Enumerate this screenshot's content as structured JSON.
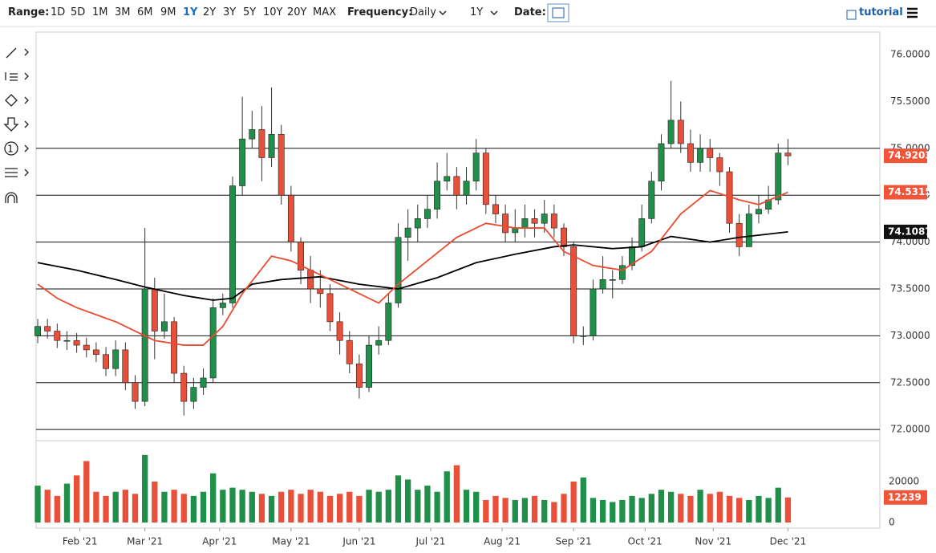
{
  "toolbar": {
    "range_label": "Range:",
    "ranges": [
      "1D",
      "5D",
      "1M",
      "3M",
      "6M",
      "9M",
      "1Y",
      "2Y",
      "3Y",
      "5Y",
      "10Y",
      "20Y",
      "MAX"
    ],
    "frequency_label": "Frequency:",
    "frequency": "Daily",
    "period": "1Y",
    "date_label": "Date:",
    "tutorial": "tutorial"
  },
  "chart_data": {
    "type": "candlestick",
    "x": [
      0,
      3,
      6,
      9,
      12,
      15,
      18,
      21,
      24,
      27,
      30,
      33,
      36,
      39,
      42,
      45,
      48,
      51,
      54,
      57,
      60,
      63,
      66,
      69,
      72,
      75,
      78,
      81,
      84,
      87,
      90,
      93,
      96,
      99,
      102,
      105,
      108,
      111,
      114,
      117,
      120,
      123,
      126,
      129,
      132,
      135,
      138,
      141,
      144,
      147,
      150,
      153,
      156,
      159,
      162,
      165,
      168,
      171,
      174,
      177,
      180,
      183,
      186,
      189,
      192,
      195,
      198,
      201,
      204,
      207,
      210,
      213,
      216,
      219,
      222,
      225,
      228,
      231
    ],
    "open": [
      73.0,
      73.1,
      73.05,
      72.95,
      72.95,
      72.9,
      72.85,
      72.8,
      72.65,
      72.85,
      72.5,
      72.3,
      73.5,
      73.05,
      73.15,
      72.6,
      72.3,
      72.45,
      72.55,
      73.3,
      73.35,
      74.6,
      75.1,
      75.2,
      74.9,
      75.15,
      74.5,
      74.0,
      73.7,
      73.5,
      73.45,
      73.15,
      72.95,
      72.7,
      72.45,
      72.9,
      72.95,
      73.35,
      74.05,
      74.15,
      74.25,
      74.35,
      74.65,
      74.7,
      74.5,
      74.65,
      74.95,
      74.4,
      74.3,
      74.1,
      74.15,
      74.25,
      74.2,
      74.3,
      74.15,
      73.95,
      73.0,
      73.0,
      73.5,
      73.6,
      73.6,
      73.75,
      73.95,
      74.25,
      74.65,
      75.05,
      75.3,
      75.05,
      74.85,
      75.0,
      74.9,
      74.75,
      74.2,
      73.95,
      74.3,
      74.35,
      74.45,
      74.95
    ],
    "high": [
      73.18,
      73.18,
      73.13,
      73.05,
      73.03,
      72.98,
      72.93,
      72.88,
      72.95,
      72.93,
      72.58,
      74.15,
      73.62,
      73.45,
      73.2,
      72.68,
      72.55,
      72.65,
      73.4,
      73.45,
      74.7,
      75.55,
      75.4,
      75.45,
      75.65,
      75.25,
      74.6,
      74.05,
      73.85,
      73.7,
      73.55,
      73.25,
      73.05,
      72.8,
      73.0,
      73.1,
      73.45,
      74.2,
      74.35,
      74.4,
      74.5,
      74.85,
      74.95,
      74.8,
      74.8,
      75.1,
      75.0,
      74.5,
      74.4,
      74.35,
      74.4,
      74.35,
      74.45,
      74.4,
      74.2,
      74.0,
      73.1,
      73.6,
      73.85,
      73.7,
      73.85,
      74.05,
      74.4,
      74.75,
      75.15,
      75.72,
      75.5,
      75.2,
      75.15,
      75.1,
      74.95,
      74.8,
      74.3,
      74.4,
      74.5,
      74.6,
      75.05,
      75.1
    ],
    "low": [
      72.92,
      72.97,
      72.87,
      72.85,
      72.82,
      72.77,
      72.72,
      72.57,
      72.57,
      72.42,
      72.22,
      72.25,
      72.75,
      72.97,
      72.5,
      72.15,
      72.22,
      72.37,
      72.5,
      73.22,
      73.3,
      74.5,
      75.0,
      74.65,
      74.8,
      74.4,
      73.9,
      73.55,
      73.35,
      73.3,
      73.05,
      72.8,
      72.6,
      72.33,
      72.4,
      72.8,
      72.9,
      73.3,
      73.8,
      74.0,
      74.15,
      74.25,
      74.55,
      74.35,
      74.4,
      74.55,
      74.3,
      74.2,
      74.0,
      74.0,
      74.05,
      74.05,
      74.1,
      74.05,
      73.85,
      72.92,
      72.9,
      72.95,
      73.45,
      73.4,
      73.55,
      73.7,
      73.9,
      74.2,
      74.55,
      75.0,
      74.95,
      74.75,
      74.75,
      74.75,
      74.6,
      74.1,
      73.85,
      73.95,
      74.2,
      74.3,
      74.4,
      74.82
    ],
    "close": [
      73.1,
      73.05,
      72.95,
      72.95,
      72.9,
      72.85,
      72.8,
      72.65,
      72.85,
      72.5,
      72.3,
      73.5,
      73.05,
      73.15,
      72.6,
      72.3,
      72.45,
      72.55,
      73.3,
      73.35,
      74.6,
      75.1,
      75.2,
      74.9,
      75.15,
      74.5,
      74.0,
      73.7,
      73.5,
      73.45,
      73.15,
      72.95,
      72.7,
      72.45,
      72.9,
      72.95,
      73.35,
      74.05,
      74.15,
      74.25,
      74.35,
      74.65,
      74.7,
      74.5,
      74.65,
      74.95,
      74.4,
      74.3,
      74.1,
      74.15,
      74.25,
      74.2,
      74.3,
      74.15,
      73.95,
      73.0,
      73.0,
      73.5,
      73.6,
      73.6,
      73.75,
      73.95,
      74.25,
      74.65,
      75.05,
      75.3,
      75.05,
      74.85,
      75.0,
      74.9,
      74.75,
      74.2,
      73.95,
      74.3,
      74.35,
      74.45,
      74.95,
      74.9203
    ],
    "colors": {
      "up": "#1f8f4a",
      "down": "#e8503a"
    },
    "series": [
      {
        "color": "#000000",
        "x": [
          0,
          12,
          24,
          33,
          45,
          54,
          60,
          66,
          75,
          87,
          99,
          111,
          123,
          135,
          147,
          159,
          165,
          177,
          186,
          195,
          207,
          216,
          231
        ],
        "values": [
          73.78,
          73.7,
          73.6,
          73.52,
          73.43,
          73.38,
          73.4,
          73.55,
          73.6,
          73.63,
          73.55,
          73.5,
          73.62,
          73.78,
          73.87,
          73.95,
          73.97,
          73.93,
          73.95,
          74.06,
          74.0,
          74.05,
          74.1087
        ]
      },
      {
        "color": "#ea4b2f",
        "x": [
          0,
          6,
          12,
          24,
          36,
          45,
          51,
          57,
          63,
          72,
          78,
          87,
          96,
          105,
          111,
          120,
          129,
          138,
          147,
          156,
          162,
          171,
          180,
          189,
          198,
          207,
          216,
          222,
          231
        ],
        "values": [
          73.55,
          73.4,
          73.3,
          73.15,
          72.95,
          72.9,
          72.9,
          73.1,
          73.45,
          73.85,
          73.8,
          73.65,
          73.5,
          73.35,
          73.55,
          73.8,
          74.05,
          74.2,
          74.15,
          74.15,
          73.9,
          73.75,
          73.7,
          73.9,
          74.3,
          74.55,
          74.45,
          74.4,
          74.5315
        ]
      }
    ],
    "levels": [
      75,
      74.5,
      74,
      73.5,
      73,
      72.5,
      72
    ],
    "xlim": [
      -0.5,
      259.3
    ],
    "xticks": [
      {
        "value": 13,
        "label": "Feb '21"
      },
      {
        "value": 33,
        "label": "Mar '21"
      },
      {
        "value": 56,
        "label": "Apr '21"
      },
      {
        "value": 78,
        "label": "May '21"
      },
      {
        "value": 99,
        "label": "Jun '21"
      },
      {
        "value": 121,
        "label": "Jul '21"
      },
      {
        "value": 143,
        "label": "Aug '21"
      },
      {
        "value": 165,
        "label": "Sep '21"
      },
      {
        "value": 187,
        "label": "Oct '21"
      },
      {
        "value": 208,
        "label": "Nov '21"
      },
      {
        "value": 231,
        "label": "Dec '21"
      }
    ],
    "ylim": [
      71.89,
      76.24
    ],
    "yticks": [
      {
        "value": 76,
        "label": "76.0000"
      },
      {
        "value": 75.5,
        "label": "75.5000"
      },
      {
        "value": 75,
        "label": "75.0000"
      },
      {
        "value": 74.5,
        "label": "74.5000"
      },
      {
        "value": 74,
        "label": "74.0000"
      },
      {
        "value": 73.5,
        "label": "73.5000"
      },
      {
        "value": 73,
        "label": "73.0000"
      },
      {
        "value": 72.5,
        "label": "72.5000"
      },
      {
        "value": 72,
        "label": "72.0000"
      }
    ],
    "volume": {
      "values": [
        18000,
        16000,
        13000,
        19000,
        23000,
        30000,
        15000,
        13000,
        15000,
        16000,
        14000,
        33000,
        20000,
        15000,
        16000,
        14000,
        13000,
        15000,
        24000,
        16000,
        17000,
        16000,
        15000,
        14000,
        13000,
        15000,
        16000,
        14000,
        16000,
        15000,
        13000,
        14000,
        15000,
        13000,
        16000,
        15000,
        16000,
        23000,
        21000,
        16000,
        18000,
        15000,
        25000,
        28000,
        16000,
        15000,
        11000,
        13000,
        12000,
        11000,
        12000,
        13000,
        11000,
        10000,
        14000,
        20000,
        22000,
        12000,
        11000,
        10000,
        11000,
        13000,
        12000,
        14000,
        16000,
        15000,
        14000,
        13000,
        16000,
        14000,
        15000,
        13000,
        12000,
        11000,
        13000,
        12000,
        17000,
        12239
      ],
      "ylim": [
        0,
        39600
      ],
      "yticks": [
        0,
        20000
      ]
    }
  }
}
